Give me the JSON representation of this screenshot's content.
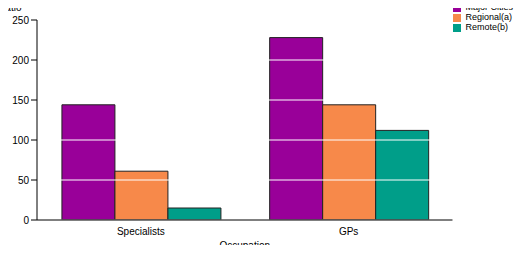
{
  "chart_data": {
    "type": "bar",
    "x_label": "Occupation",
    "y_label": "ratio",
    "categories": [
      "Specialists",
      "GPs"
    ],
    "series": [
      {
        "name": "Major Cities",
        "color": "#990099",
        "values": [
          144,
          228
        ]
      },
      {
        "name": "Regional(a)",
        "color": "#f7894a",
        "values": [
          61,
          144
        ]
      },
      {
        "name": "Remote(b)",
        "color": "#009e89",
        "values": [
          15,
          112
        ]
      }
    ],
    "ylim": [
      0,
      250
    ],
    "yticks": [
      0,
      50,
      100,
      150,
      200,
      250
    ],
    "grid": true,
    "legend": "top-right"
  }
}
